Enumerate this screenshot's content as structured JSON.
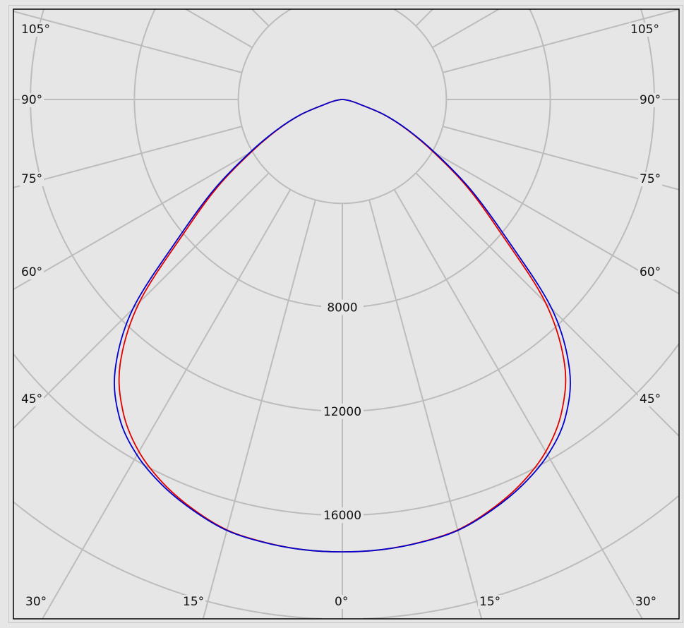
{
  "chart_data": {
    "type": "polar-line",
    "title": "",
    "angle_unit": "deg",
    "radial_ticks": [
      4000,
      8000,
      12000,
      16000,
      20000,
      24000
    ],
    "radial_tick_labels": [
      "8000",
      "12000",
      "16000"
    ],
    "radial_tick_label_values": [
      8000,
      12000,
      16000
    ],
    "angle_labels_left": [
      "105°",
      "90°",
      "75°",
      "60°",
      "45°",
      "30°",
      "15°"
    ],
    "angle_labels_right": [
      "105°",
      "90°",
      "75°",
      "60°",
      "45°",
      "30°",
      "15°"
    ],
    "angle_label_center": "0°",
    "spoke_step_deg": 15,
    "grid": true,
    "angles": [
      0,
      5,
      10,
      15,
      20,
      25,
      30,
      35,
      40,
      45,
      50,
      55,
      60,
      65,
      70,
      75,
      80,
      85,
      90
    ],
    "series": [
      {
        "color": "#e00000",
        "values": [
          17410,
          17390,
          17300,
          17150,
          16780,
          16300,
          15650,
          14700,
          13300,
          11050,
          7900,
          5850,
          4050,
          2750,
          1700,
          650,
          300,
          100,
          0
        ]
      },
      {
        "color": "#0000cc",
        "values": [
          17410,
          17390,
          17310,
          17170,
          16820,
          16380,
          15800,
          14950,
          13600,
          11400,
          8150,
          6000,
          4150,
          2800,
          1720,
          660,
          300,
          100,
          0
        ]
      }
    ],
    "colors": {
      "background": "#e6e6e6",
      "grid": "#bcbcbc",
      "frame": "#000000"
    }
  }
}
